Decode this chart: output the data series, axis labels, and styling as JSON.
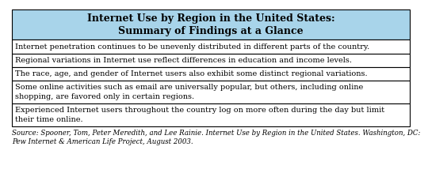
{
  "title_line1": "Internet Use by Region in the United States:",
  "title_line2": "Summary of Findings at a Glance",
  "title_bg_color": "#a8d4ea",
  "rows": [
    "Internet penetration continues to be unevenly distributed in different parts of the country.",
    "Regional variations in Internet use reflect differences in education and income levels.",
    "The race, age, and gender of Internet users also exhibit some distinct regional variations.",
    "Some online activities such as email are universally popular, but others, including online\nshopping, are favored only in certain regions.",
    "Experienced Internet users throughout the country log on more often during the day but limit\ntheir time online."
  ],
  "source_text": "Source: Spooner, Tom, Peter Meredith, and Lee Rainie. Internet Use by Region in the United States. Washington, DC:\nPew Internet & American Life Project, August 2003.",
  "row_bg_color": "#ffffff",
  "border_color": "#000000",
  "text_color": "#000000",
  "source_color": "#000000",
  "font_size": 7.0,
  "title_font_size": 9.0,
  "source_font_size": 6.2
}
